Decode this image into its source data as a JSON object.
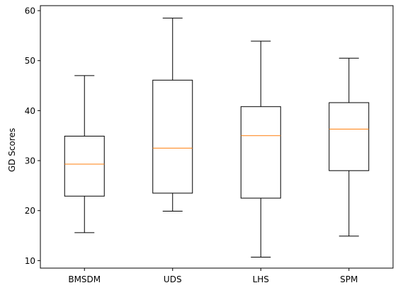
{
  "chart_data": {
    "type": "boxplot",
    "title": "",
    "xlabel": "",
    "ylabel": "GD Scores",
    "ylim": [
      8.5,
      61
    ],
    "yticks": [
      10,
      20,
      30,
      40,
      50,
      60
    ],
    "yticklabels": [
      "10",
      "20",
      "30",
      "40",
      "50",
      "60"
    ],
    "grid": false,
    "legend": "none",
    "categories": [
      "BMSDM",
      "UDS",
      "LHS",
      "SPM"
    ],
    "boxes": [
      {
        "whisker_low": 15.6,
        "q1": 22.9,
        "median": 29.3,
        "q3": 34.9,
        "whisker_high": 47.0
      },
      {
        "whisker_low": 19.9,
        "q1": 23.5,
        "median": 32.5,
        "q3": 46.1,
        "whisker_high": 58.5
      },
      {
        "whisker_low": 10.7,
        "q1": 22.5,
        "median": 35.0,
        "q3": 40.8,
        "whisker_high": 53.9
      },
      {
        "whisker_low": 14.9,
        "q1": 28.0,
        "median": 36.3,
        "q3": 41.6,
        "whisker_high": 50.5
      }
    ],
    "colors": {
      "box": "#000000",
      "median": "#ff7f0e",
      "axes": "#000000"
    }
  }
}
